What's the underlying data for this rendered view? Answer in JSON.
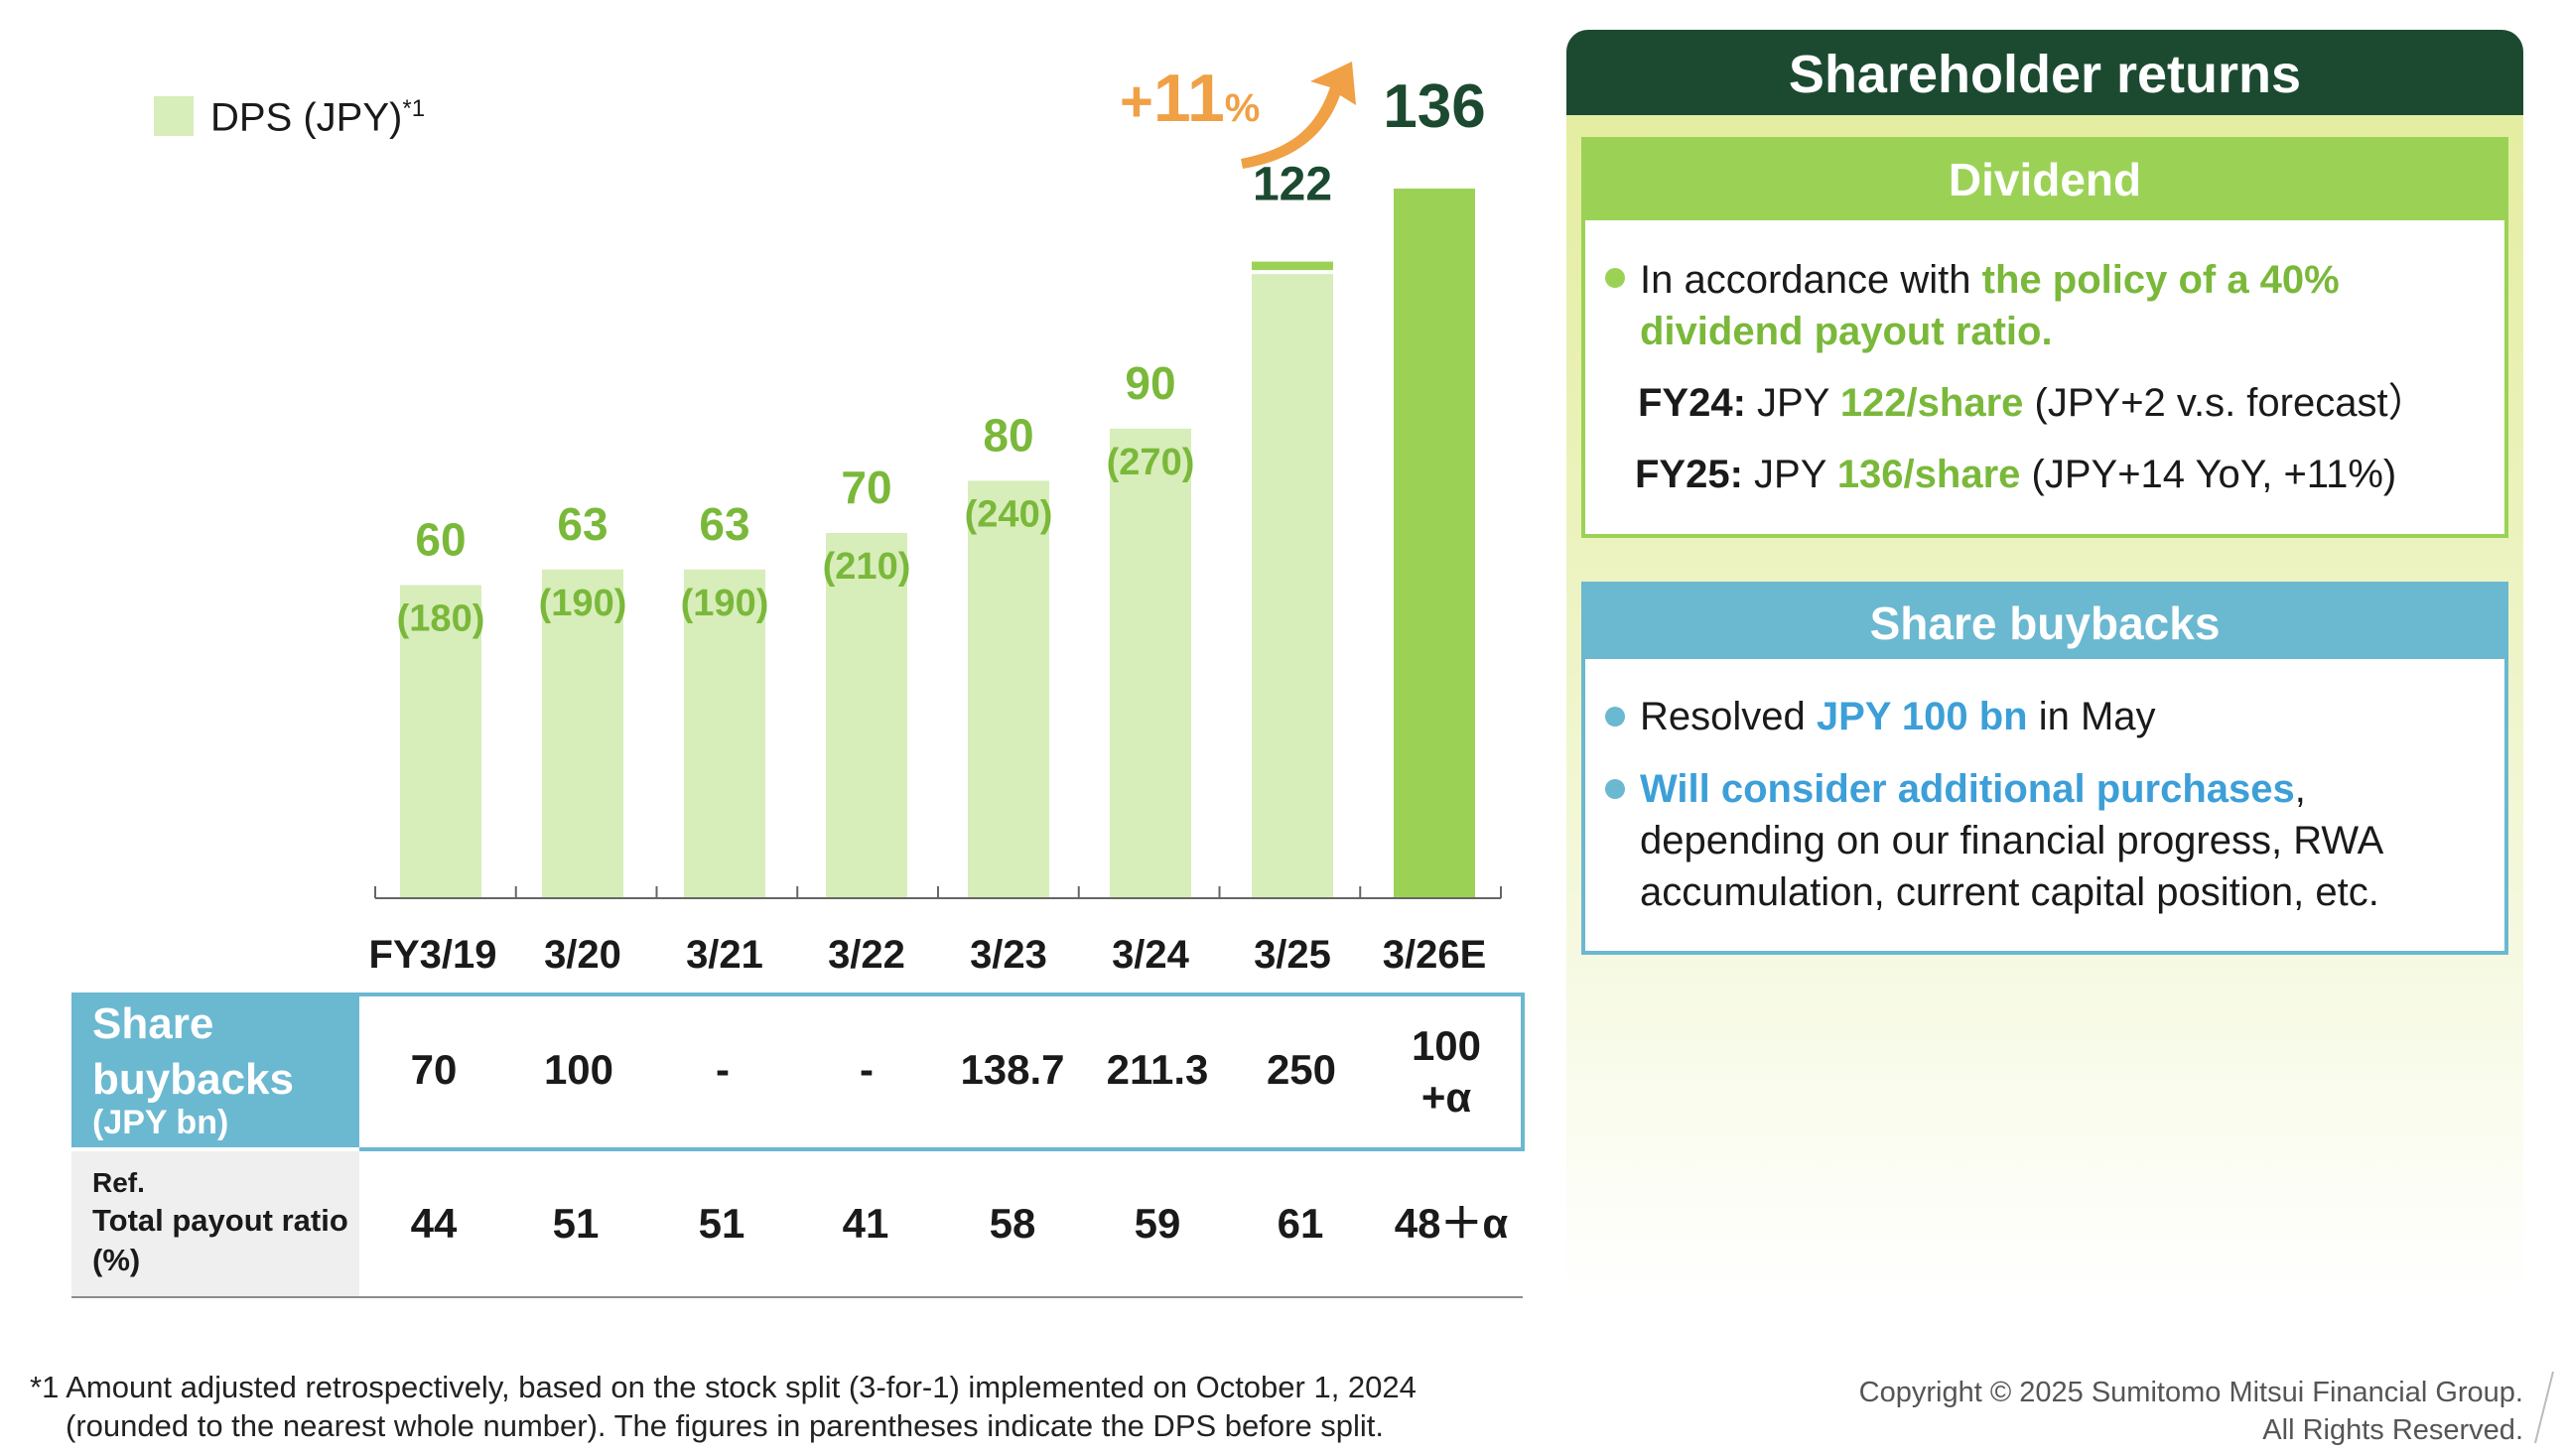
{
  "legend": {
    "label": "DPS (JPY)",
    "sup": "*1"
  },
  "chart_data": {
    "type": "bar",
    "categories": [
      "FY3/19",
      "3/20",
      "3/21",
      "3/22",
      "3/23",
      "3/24",
      "3/25",
      "3/26E"
    ],
    "values": [
      60,
      63,
      63,
      70,
      80,
      90,
      122,
      136
    ],
    "value_labels": [
      "60",
      "63",
      "63",
      "70",
      "80",
      "90",
      "122",
      "136"
    ],
    "pre_split_labels": [
      "(180)",
      "(190)",
      "(190)",
      "(210)",
      "(240)",
      "(270)",
      "",
      ""
    ],
    "series": [
      {
        "name": "DPS (JPY)",
        "values": [
          60,
          63,
          63,
          70,
          80,
          90,
          122,
          136
        ]
      }
    ],
    "ylim": [
      0,
      136
    ],
    "forecast_prior_value": 120,
    "growth_annotation": {
      "sign": "+",
      "number": "11",
      "unit": "%"
    },
    "colors": {
      "bar": "#d7edba",
      "bar_forecast": "#9bd256",
      "label_green": "#7ab83a",
      "label_dark": "#1c4a30",
      "arrow": "#f0a045"
    }
  },
  "table": {
    "buyback_header": [
      "Share",
      "buybacks"
    ],
    "buyback_unit": "(JPY bn)",
    "buybacks": [
      "70",
      "100",
      "-",
      "-",
      "138.7",
      "211.3",
      "250",
      "100",
      "+α"
    ],
    "ref_header": [
      "Ref.",
      "Total payout ratio",
      "(%)"
    ],
    "payout": [
      "44",
      "51",
      "51",
      "41",
      "58",
      "59",
      "61",
      "48＋α"
    ]
  },
  "footnote": {
    "line1": "*1 Amount adjusted retrospectively, based on the stock split (3-for-1) implemented on October 1, 2024",
    "line2": "(rounded to the nearest whole number). The figures in parentheses indicate the DPS before split."
  },
  "copyright": {
    "line1": "Copyright © 2025 Sumitomo Mitsui Financial Group.",
    "line2": "All Rights Reserved."
  },
  "panel": {
    "title": "Shareholder returns",
    "dividend": {
      "title": "Dividend",
      "bullet_pre": "In accordance with ",
      "bullet_em1": "the policy of a 40%",
      "bullet_em2": "dividend payout ratio.",
      "fy24_label": "FY24:",
      "fy24_pre": " JPY ",
      "fy24_em": "122/share",
      "fy24_post": " (JPY+2 v.s. forecast）",
      "fy25_label": "FY25:",
      "fy25_pre": " JPY ",
      "fy25_em": "136/share",
      "fy25_post": " (JPY+14 YoY, +11%)"
    },
    "buybacks": {
      "title": "Share buybacks",
      "b1_pre": "Resolved ",
      "b1_em": "JPY 100 bn",
      "b1_post": " in May",
      "b2_em": "Will consider additional purchases",
      "b2_post": ",",
      "b2_line2": "depending on our financial progress, RWA",
      "b2_line3": "accumulation, current capital position, etc."
    }
  }
}
